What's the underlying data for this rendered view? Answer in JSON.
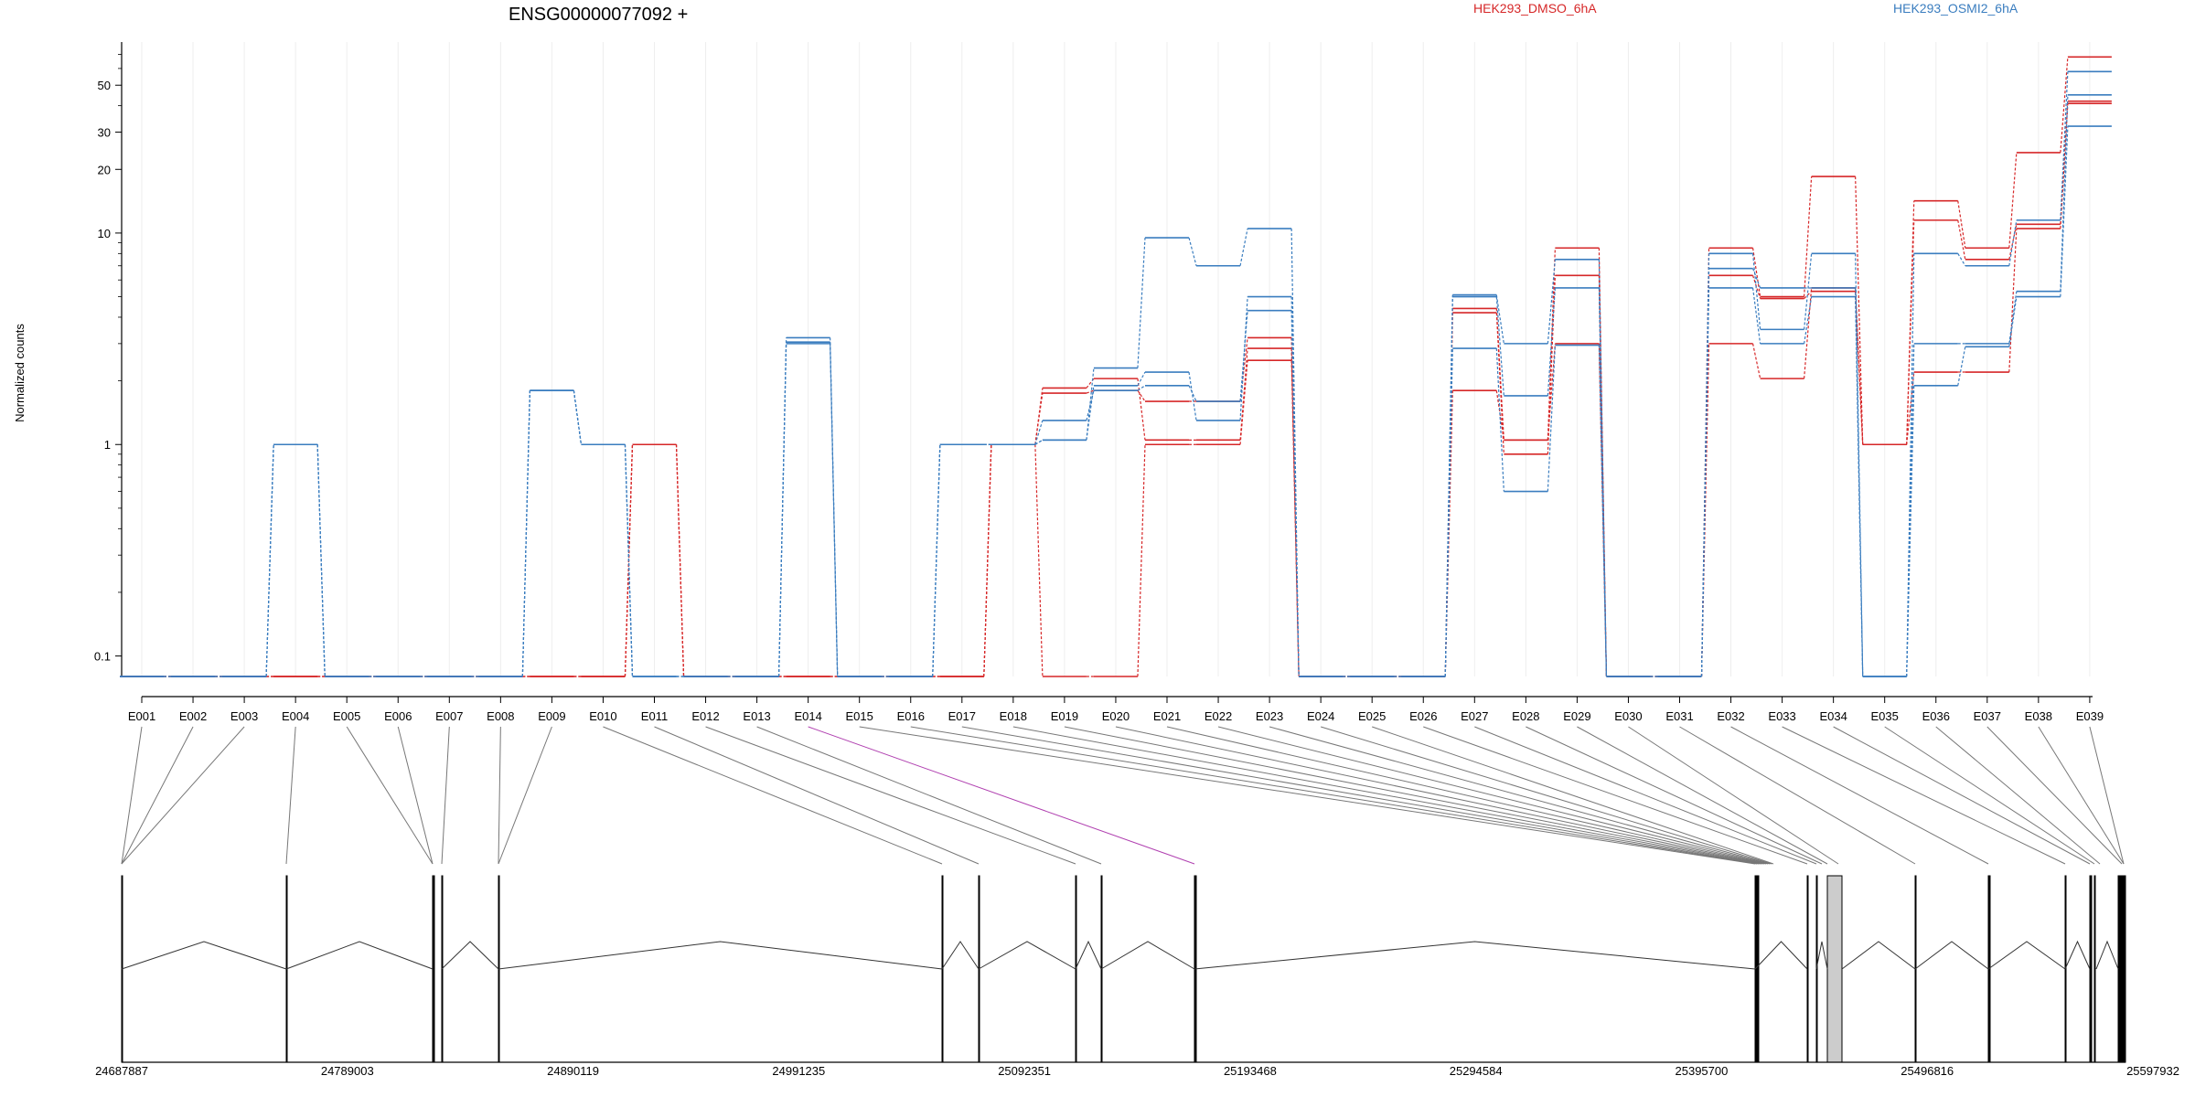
{
  "chart_data": {
    "type": "line",
    "title": "ENSG00000077092 +",
    "ylabel": "Normalized counts",
    "y_scale": "log",
    "y_ticks": [
      0.1,
      1,
      10,
      20,
      30,
      50
    ],
    "y_tick_labels": [
      "0.1",
      "1",
      "10",
      "20",
      "30",
      "50"
    ],
    "ylim": [
      0.08,
      80
    ],
    "grid": "vertical",
    "legend_placement": "top",
    "categories": [
      "E001",
      "E002",
      "E003",
      "E004",
      "E005",
      "E006",
      "E007",
      "E008",
      "E009",
      "E010",
      "E011",
      "E012",
      "E013",
      "E014",
      "E015",
      "E016",
      "E017",
      "E018",
      "E019",
      "E020",
      "E021",
      "E022",
      "E023",
      "E024",
      "E025",
      "E026",
      "E027",
      "E028",
      "E029",
      "E030",
      "E031",
      "E032",
      "E033",
      "E034",
      "E035",
      "E036",
      "E037",
      "E038",
      "E039"
    ],
    "groups": [
      {
        "name": "HEK293_DMSO_6hA",
        "color": "#d62728"
      },
      {
        "name": "HEK293_OSMI2_6hA",
        "color": "#3a7dbf"
      }
    ],
    "series": [
      {
        "group": 0,
        "values": [
          0,
          0,
          0,
          0,
          0,
          0,
          0,
          0,
          0,
          0,
          1.0,
          0,
          0,
          0,
          0,
          0,
          0,
          1.0,
          1.85,
          2.05,
          1.05,
          1.05,
          2.85,
          0,
          0,
          0,
          4.4,
          1.05,
          8.5,
          0,
          0,
          8.5,
          5.0,
          18.5,
          1.0,
          14.2,
          8.5,
          24.0,
          68.0
        ]
      },
      {
        "group": 0,
        "values": [
          0,
          0,
          0,
          0,
          0,
          0,
          0,
          0,
          0,
          0,
          1.0,
          0,
          0,
          0,
          0,
          0,
          0,
          1.0,
          1.75,
          1.8,
          1.6,
          1.6,
          3.2,
          0,
          0,
          0,
          4.2,
          0.9,
          6.3,
          0,
          0,
          6.3,
          4.9,
          5.3,
          1.0,
          11.5,
          7.5,
          11.0,
          42.0
        ]
      },
      {
        "group": 0,
        "values": [
          0,
          0,
          0,
          0,
          0,
          0,
          0,
          0,
          0,
          0,
          1.0,
          0,
          0,
          0,
          0,
          0,
          0,
          1.0,
          0,
          0,
          1.0,
          1.0,
          2.5,
          0,
          0,
          0,
          1.8,
          1.05,
          3.0,
          0,
          0,
          3.0,
          2.05,
          5.5,
          1.0,
          2.2,
          2.2,
          10.5,
          41.0
        ]
      },
      {
        "group": 1,
        "values": [
          0,
          0,
          0,
          1.0,
          0,
          0,
          0,
          0,
          1.8,
          1.0,
          0,
          0,
          0,
          3.2,
          0,
          0,
          1.0,
          1.0,
          1.05,
          2.3,
          9.5,
          7.0,
          10.5,
          0,
          0,
          0,
          5.1,
          3.0,
          7.5,
          0,
          0,
          8.0,
          3.5,
          8.0,
          0,
          8.0,
          7.0,
          11.5,
          58.0
        ]
      },
      {
        "group": 1,
        "values": [
          0,
          0,
          0,
          1.0,
          0,
          0,
          0,
          0,
          1.8,
          1.0,
          0,
          0,
          0,
          3.05,
          0,
          0,
          1.0,
          1.0,
          1.05,
          1.9,
          2.2,
          1.3,
          5.0,
          0,
          0,
          0,
          5.0,
          1.7,
          5.5,
          0,
          0,
          6.8,
          5.5,
          5.5,
          0,
          3.0,
          3.0,
          5.3,
          45.0
        ]
      },
      {
        "group": 1,
        "values": [
          0,
          0,
          0,
          1.0,
          0,
          0,
          0,
          0,
          1.8,
          1.0,
          0,
          0,
          0,
          3.0,
          0,
          0,
          1.0,
          1.0,
          1.3,
          1.8,
          1.9,
          1.6,
          4.3,
          0,
          0,
          0,
          2.85,
          0.6,
          2.95,
          0,
          0,
          5.5,
          3.0,
          5.0,
          0,
          1.9,
          2.9,
          5.0,
          32.0
        ]
      }
    ],
    "exon_model": {
      "coordinate_labels": [
        "24687887",
        "24789003",
        "24890119",
        "24991235",
        "25092351",
        "25193468",
        "25294584",
        "25395700",
        "25496816",
        "25597932"
      ]
    }
  }
}
